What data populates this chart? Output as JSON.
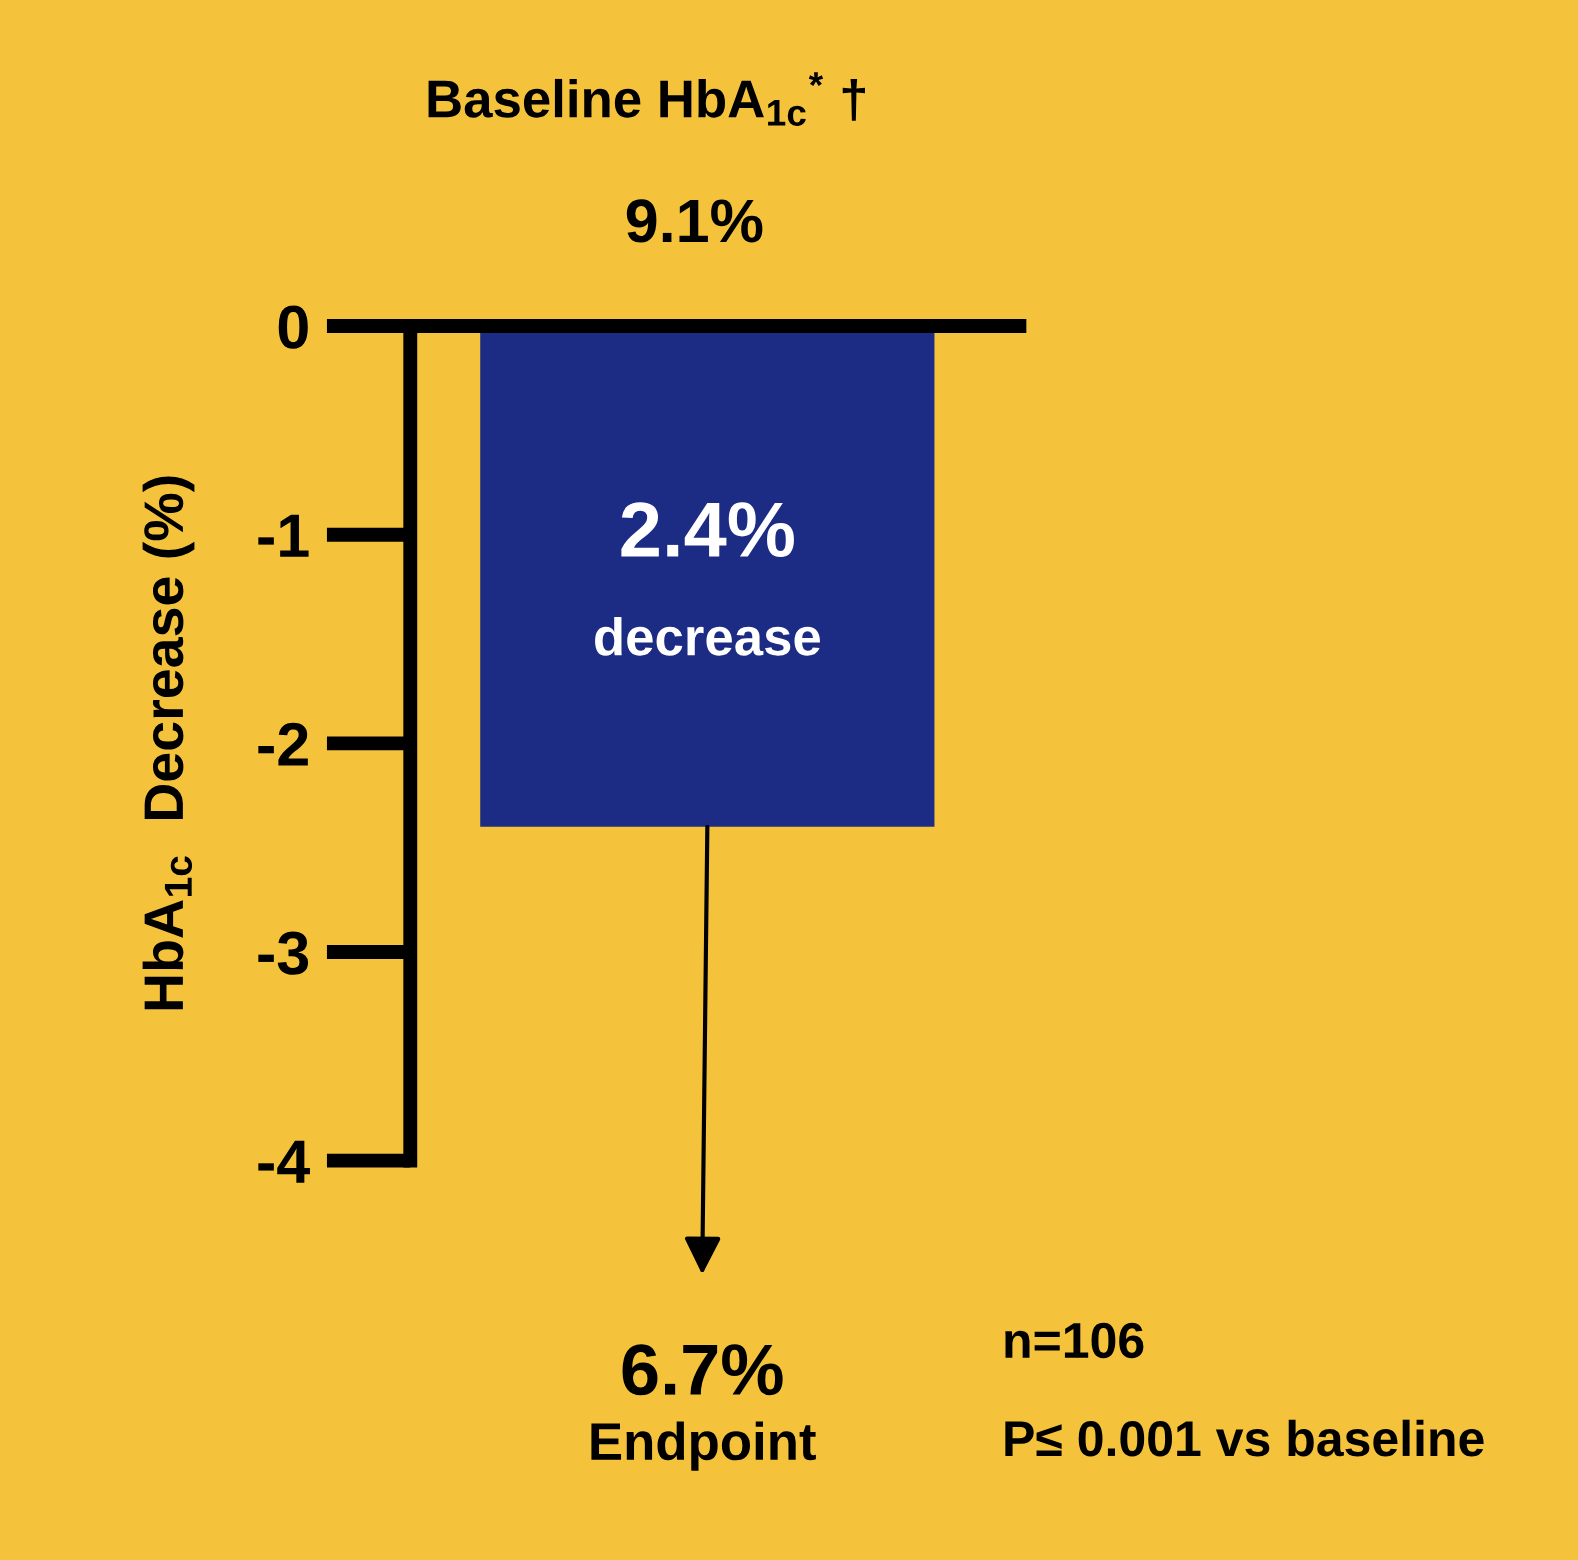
{
  "chart_data": {
    "type": "bar",
    "title": "Baseline HbA$_{1c}$$^{*}$ †",
    "subtitle": "9.1%",
    "ylabel": "HbA$_{1c}$  Decrease (%)",
    "categories": [
      null
    ],
    "values": [
      -2.4
    ],
    "color": "#1c2c84",
    "ylim": [
      -4,
      0
    ],
    "yticks": [
      0,
      -1,
      -2,
      -3,
      -4
    ],
    "tick_labels": "y",
    "grid": false,
    "annotations": [
      "2.4%",
      "decrease",
      "6.7%",
      "Endpoint",
      "n=106",
      "P≤ 0.001 vs baseline"
    ]
  }
}
